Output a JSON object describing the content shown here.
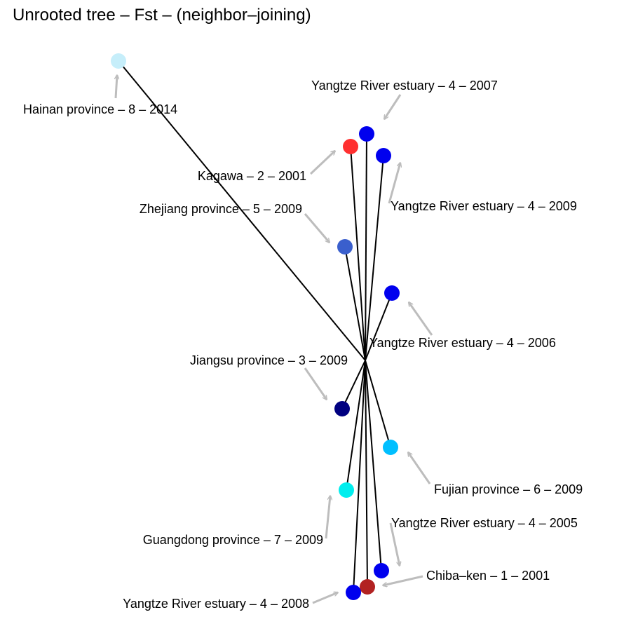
{
  "title": "Unrooted tree – Fst – (neighbor–joining)",
  "colors": {
    "edge": "#000000",
    "arrow": "#bdbdbd"
  },
  "tips": [
    {
      "id": "hainan",
      "label": "Hainan province – 8 – 2014",
      "color": "#c6eefa"
    },
    {
      "id": "yre2007",
      "label": "Yangtze River estuary – 4 – 2007",
      "color": "#0000ee"
    },
    {
      "id": "kagawa",
      "label": "Kagawa – 2 – 2001",
      "color": "#ff3030"
    },
    {
      "id": "yre2009",
      "label": "Yangtze River estuary – 4 – 2009",
      "color": "#0000ee"
    },
    {
      "id": "zhejiang",
      "label": "Zhejiang province – 5 – 2009",
      "color": "#3a5fcd"
    },
    {
      "id": "yre2006",
      "label": "Yangtze River estuary – 4 – 2006",
      "color": "#0000ee"
    },
    {
      "id": "jiangsu",
      "label": "Jiangsu province – 3 – 2009",
      "color": "#000080"
    },
    {
      "id": "fujian",
      "label": "Fujian province – 6 – 2009",
      "color": "#00bfff"
    },
    {
      "id": "guangdong",
      "label": "Guangdong province – 7 – 2009",
      "color": "#00eeee"
    },
    {
      "id": "yre2005",
      "label": "Yangtze River estuary – 4 – 2005",
      "color": "#0000ee"
    },
    {
      "id": "chiba",
      "label": "Chiba–ken – 1 – 2001",
      "color": "#b22222"
    },
    {
      "id": "yre2008",
      "label": "Yangtze River estuary – 4 – 2008",
      "color": "#0000ee"
    }
  ]
}
